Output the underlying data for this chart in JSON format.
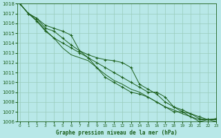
{
  "x": [
    0,
    1,
    2,
    3,
    4,
    5,
    6,
    7,
    8,
    9,
    10,
    11,
    12,
    13,
    14,
    15,
    16,
    17,
    18,
    19,
    20,
    21,
    22,
    23
  ],
  "line1": [
    1018,
    1017,
    1016.5,
    1015.8,
    1015.5,
    1015.2,
    1014.8,
    1013.2,
    1012.8,
    1012.5,
    1012.3,
    1012.2,
    1012.0,
    1011.5,
    1009.8,
    1009.3,
    1008.8,
    1008.0,
    1007.5,
    1007.0,
    1006.8,
    1006.5,
    1006.2,
    1006.0
  ],
  "line2": [
    1018,
    1017,
    1016.5,
    1015.5,
    1015.2,
    1014.5,
    1013.8,
    1013.2,
    1012.5,
    1012.0,
    1011.5,
    1011.0,
    1010.5,
    1010.0,
    1009.5,
    1009.0,
    1009.0,
    1008.5,
    1007.5,
    1007.2,
    1006.8,
    1006.3,
    1006.2,
    1006.2
  ],
  "line3": [
    1018,
    1017,
    1016.2,
    1015.2,
    1014.5,
    1014.0,
    1013.5,
    1013.0,
    1012.5,
    1011.5,
    1010.5,
    1010.0,
    1009.5,
    1009.0,
    1008.8,
    1008.5,
    1008.0,
    1007.5,
    1007.0,
    1007.0,
    1006.5,
    1006.0,
    1006.2,
    1006.3
  ],
  "line4_no_marker": [
    1018,
    1017,
    1016.3,
    1015.3,
    1014.5,
    1013.5,
    1012.8,
    1012.5,
    1012.2,
    1011.5,
    1010.8,
    1010.2,
    1009.8,
    1009.3,
    1009.0,
    1008.5,
    1008.0,
    1007.5,
    1007.2,
    1006.8,
    1006.5,
    1006.2,
    1006.2,
    1006.3
  ],
  "ylim": [
    1006,
    1018
  ],
  "xlim": [
    -0.3,
    23
  ],
  "yticks": [
    1006,
    1007,
    1008,
    1009,
    1010,
    1011,
    1012,
    1013,
    1014,
    1015,
    1016,
    1017,
    1018
  ],
  "xticks": [
    0,
    1,
    2,
    3,
    4,
    5,
    6,
    7,
    8,
    9,
    10,
    11,
    12,
    13,
    14,
    15,
    16,
    17,
    18,
    19,
    20,
    21,
    22,
    23
  ],
  "xlabel": "Graphe pression niveau de la mer (hPa)",
  "line_color": "#1a5e1a",
  "bg_color": "#b8e8e8",
  "grid_color": "#99ccbb",
  "marker": "+",
  "marker_size": 3,
  "marker_lw": 0.8,
  "line_lw": 0.7,
  "ytick_fontsize": 5.0,
  "xtick_fontsize": 4.2,
  "xlabel_fontsize": 5.5
}
